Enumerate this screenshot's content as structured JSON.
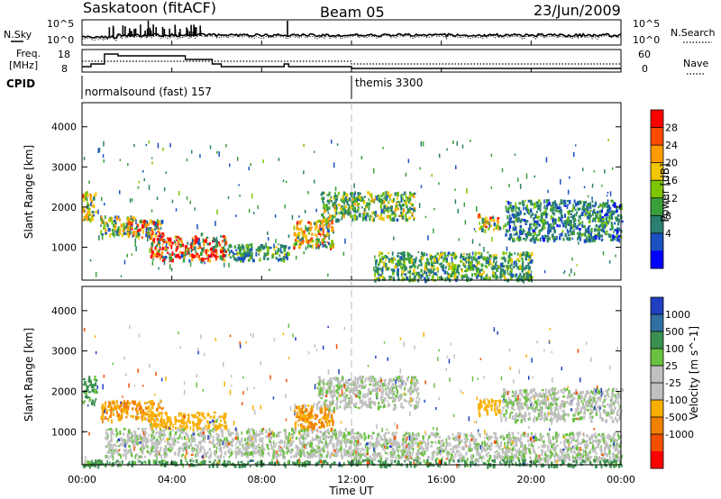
{
  "header": {
    "station": "Saskatoon (fitACF)",
    "beam": "Beam 05",
    "date": "23/Jun/2009"
  },
  "top_panels": {
    "nsky_label": "N.Sky",
    "nsky_tick_top": "10^5",
    "nsky_tick_bot": "10^0",
    "nsearch_label": "N.Search",
    "nsearch_tick_top": "10^5",
    "nsearch_tick_bot": "10^0",
    "freq_label": "Freq.",
    "freq_unit": "[MHz]",
    "freq_ticks": [
      "18",
      "8"
    ],
    "nave_ticks": [
      "60",
      "0"
    ],
    "nave_label": "Nave",
    "cpid_label": "CPID",
    "cpid_segments": [
      {
        "name": "normalsound (fast) 157",
        "start_hour": 0
      },
      {
        "name": "themis 3300",
        "start_hour": 12
      }
    ]
  },
  "power_colorbar": {
    "label": "Power [dB]",
    "ticks": [
      "28",
      "24",
      "20",
      "16",
      "12",
      "8",
      "4"
    ],
    "colors": [
      "#ff0000",
      "#ff4a00",
      "#ff9a00",
      "#f2c600",
      "#7ec600",
      "#3aa03a",
      "#2a8070",
      "#1a50c0",
      "#0000ff"
    ]
  },
  "velocity_colorbar": {
    "label": "Velocity [m s^-1]",
    "ticks": [
      "1000",
      "500",
      "100",
      "25",
      "-25",
      "-100",
      "-500",
      "-1000"
    ],
    "colors": [
      "#2040c0",
      "#3070a0",
      "#3a9050",
      "#6ac040",
      "#c0c0c0",
      "#c0c0c0",
      "#f8b000",
      "#f08000",
      "#f05000",
      "#ff0000"
    ]
  },
  "chart_data": [
    {
      "type": "heatmap",
      "title": "Power",
      "ylabel": "Slant Range [km]",
      "xlabel": "Time UT",
      "x_ticks": [
        "00:00",
        "04:00",
        "08:00",
        "12:00",
        "16:00",
        "20:00",
        "00:00"
      ],
      "y_ticks": [
        1000,
        2000,
        3000,
        4000
      ],
      "xlim": [
        0,
        24
      ],
      "ylim": [
        180,
        4600
      ],
      "echo_regions": [
        {
          "t0": 0.0,
          "t1": 0.6,
          "r0": 1700,
          "r1": 2400,
          "value": 18
        },
        {
          "t0": 0.8,
          "t1": 2.4,
          "r0": 1300,
          "r1": 1800,
          "value": 16
        },
        {
          "t0": 2.0,
          "t1": 3.6,
          "r0": 1250,
          "r1": 1700,
          "value": 22
        },
        {
          "t0": 3.0,
          "t1": 6.4,
          "r0": 700,
          "r1": 1300,
          "value": 26
        },
        {
          "t0": 6.4,
          "t1": 9.2,
          "r0": 700,
          "r1": 1100,
          "value": 10
        },
        {
          "t0": 9.4,
          "t1": 11.2,
          "r0": 1000,
          "r1": 1700,
          "value": 20
        },
        {
          "t0": 10.6,
          "t1": 14.8,
          "r0": 1700,
          "r1": 2400,
          "value": 14
        },
        {
          "t0": 13.0,
          "t1": 20.0,
          "r0": 200,
          "r1": 900,
          "value": 12
        },
        {
          "t0": 17.6,
          "t1": 18.6,
          "r0": 1450,
          "r1": 1850,
          "value": 20
        },
        {
          "t0": 18.8,
          "t1": 24.0,
          "r0": 1200,
          "r1": 2200,
          "value": 8
        }
      ]
    },
    {
      "type": "heatmap",
      "title": "Velocity",
      "ylabel": "Slant Range [km]",
      "xlabel": "Time UT",
      "x_ticks": [
        "00:00",
        "04:00",
        "08:00",
        "12:00",
        "16:00",
        "20:00",
        "00:00"
      ],
      "y_ticks": [
        1000,
        2000,
        3000,
        4000
      ],
      "xlim": [
        0,
        24
      ],
      "ylim": [
        180,
        4600
      ],
      "echo_regions": [
        {
          "t0": 0.0,
          "t1": 0.6,
          "r0": 1700,
          "r1": 2400,
          "value": 100
        },
        {
          "t0": 0.8,
          "t1": 3.6,
          "r0": 1300,
          "r1": 1800,
          "value": -300
        },
        {
          "t0": 3.0,
          "t1": 6.4,
          "r0": 1100,
          "r1": 1500,
          "value": -200
        },
        {
          "t0": 1.0,
          "t1": 12.0,
          "r0": 400,
          "r1": 1100,
          "value": 0
        },
        {
          "t0": 9.4,
          "t1": 11.2,
          "r0": 1100,
          "r1": 1700,
          "value": -300
        },
        {
          "t0": 10.4,
          "t1": 15.0,
          "r0": 1600,
          "r1": 2400,
          "value": 0
        },
        {
          "t0": 12.0,
          "t1": 24.0,
          "r0": 300,
          "r1": 1000,
          "value": 0
        },
        {
          "t0": 17.6,
          "t1": 18.6,
          "r0": 1450,
          "r1": 1850,
          "value": -200
        },
        {
          "t0": 18.6,
          "t1": 24.0,
          "r0": 1300,
          "r1": 2100,
          "value": 0
        },
        {
          "t0": 0.0,
          "t1": 24.0,
          "r0": 180,
          "r1": 320,
          "value": 100
        }
      ]
    }
  ],
  "xaxis": {
    "label": "Time UT",
    "ticks": [
      "00:00",
      "04:00",
      "08:00",
      "12:00",
      "16:00",
      "20:00",
      "00:00"
    ]
  },
  "yaxis": {
    "label": "Slant Range [km]",
    "ticks": [
      "1000",
      "2000",
      "3000",
      "4000"
    ]
  }
}
